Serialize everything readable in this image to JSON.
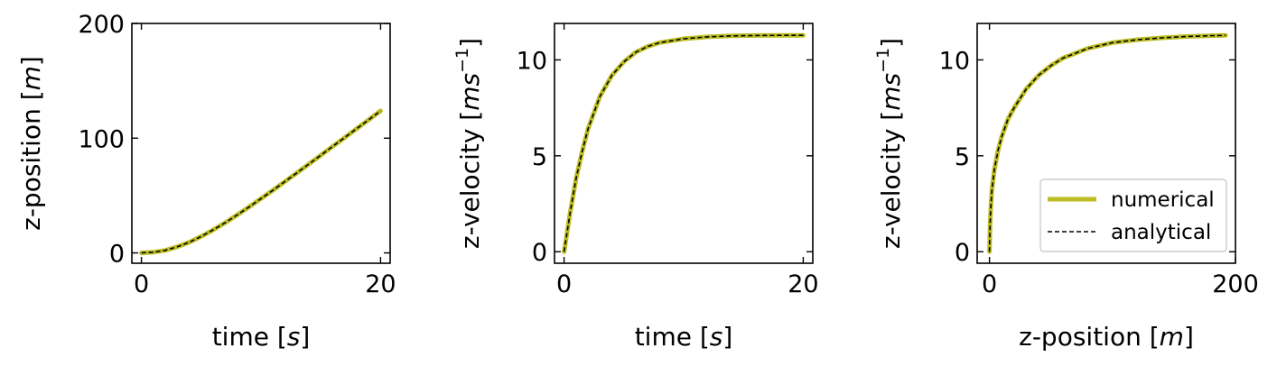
{
  "colors": {
    "numerical": "#bcbd22",
    "analytical": "#000000"
  },
  "chart_data": [
    {
      "type": "line",
      "xlabel": "time [s]",
      "xlabel_parts": [
        "time [",
        "s",
        "]"
      ],
      "ylabel": "z-position [m]",
      "ylabel_parts": [
        "z-position [",
        "m",
        "]"
      ],
      "xlim": [
        -0.8,
        20.8
      ],
      "ylim": [
        -9,
        200
      ],
      "xticks": [
        0,
        20
      ],
      "yticks": [
        0,
        100,
        200
      ],
      "legend": null,
      "series": [
        {
          "name": "numerical",
          "x": [
            0,
            1,
            2,
            3,
            4,
            5,
            6,
            7,
            8,
            9,
            10,
            11,
            12,
            13,
            14,
            15,
            16,
            17,
            18,
            19,
            20
          ],
          "y": [
            0,
            0.6,
            2.2,
            5.3,
            9.3,
            14.3,
            20.1,
            26.3,
            33.0,
            40.0,
            47.3,
            54.6,
            62.2,
            69.7,
            77.4,
            85.1,
            92.8,
            100.5,
            108.3,
            116.0,
            123.8
          ]
        },
        {
          "name": "analytical",
          "x": [
            0,
            1,
            2,
            3,
            4,
            5,
            6,
            7,
            8,
            9,
            10,
            11,
            12,
            13,
            14,
            15,
            16,
            17,
            18,
            19,
            20
          ],
          "y": [
            0,
            0.6,
            2.2,
            5.3,
            9.3,
            14.3,
            20.1,
            26.3,
            33.0,
            40.0,
            47.3,
            54.6,
            62.2,
            69.7,
            77.4,
            85.1,
            92.8,
            100.5,
            108.3,
            116.0,
            123.8
          ]
        }
      ]
    },
    {
      "type": "line",
      "xlabel": "time [s]",
      "xlabel_parts": [
        "time [",
        "s",
        "]"
      ],
      "ylabel": "z-velocity [ms⁻¹]",
      "ylabel_parts": [
        "z-velocity [",
        "ms",
        "−1",
        "]"
      ],
      "xlim": [
        -0.8,
        20.8
      ],
      "ylim": [
        -0.6,
        11.9
      ],
      "xticks": [
        0,
        20
      ],
      "yticks": [
        0,
        5,
        10
      ],
      "legend": null,
      "series": [
        {
          "name": "numerical",
          "x": [
            0,
            0.5,
            1,
            1.5,
            2,
            3,
            4,
            5,
            6,
            7,
            8,
            9,
            10,
            12,
            14,
            16,
            18,
            20
          ],
          "y": [
            0,
            2.0,
            3.8,
            5.2,
            6.4,
            8.1,
            9.2,
            9.9,
            10.4,
            10.7,
            10.9,
            11.0,
            11.1,
            11.2,
            11.25,
            11.27,
            11.28,
            11.28
          ]
        },
        {
          "name": "analytical",
          "x": [
            0,
            0.5,
            1,
            1.5,
            2,
            3,
            4,
            5,
            6,
            7,
            8,
            9,
            10,
            12,
            14,
            16,
            18,
            20
          ],
          "y": [
            0,
            2.0,
            3.8,
            5.2,
            6.4,
            8.1,
            9.2,
            9.9,
            10.4,
            10.7,
            10.9,
            11.0,
            11.1,
            11.2,
            11.25,
            11.27,
            11.28,
            11.28
          ]
        }
      ]
    },
    {
      "type": "line",
      "xlabel": "z-position [m]",
      "xlabel_parts": [
        "z-position [",
        "m",
        "]"
      ],
      "ylabel": "z-velocity [ms⁻¹]",
      "ylabel_parts": [
        "z-velocity [",
        "ms",
        "−1",
        "]"
      ],
      "xlim": [
        -10,
        200
      ],
      "ylim": [
        -0.6,
        11.9
      ],
      "xticks": [
        0,
        200
      ],
      "yticks": [
        0,
        5,
        10
      ],
      "legend": {
        "position": "lower-right",
        "entries": [
          "numerical",
          "analytical"
        ]
      },
      "series": [
        {
          "name": "numerical",
          "x": [
            0,
            0.5,
            1,
            2,
            4,
            7,
            10,
            15,
            20,
            30,
            40,
            50,
            60,
            80,
            100,
            120,
            140,
            160,
            180,
            192
          ],
          "y": [
            0,
            1.4,
            2.2,
            3.2,
            4.3,
            5.3,
            6.0,
            6.9,
            7.5,
            8.5,
            9.2,
            9.7,
            10.1,
            10.6,
            10.9,
            11.05,
            11.15,
            11.22,
            11.26,
            11.28
          ]
        },
        {
          "name": "analytical",
          "x": [
            0,
            0.5,
            1,
            2,
            4,
            7,
            10,
            15,
            20,
            30,
            40,
            50,
            60,
            80,
            100,
            120,
            140,
            160,
            180,
            192
          ],
          "y": [
            0,
            1.4,
            2.2,
            3.2,
            4.3,
            5.3,
            6.0,
            6.9,
            7.5,
            8.5,
            9.2,
            9.7,
            10.1,
            10.6,
            10.9,
            11.05,
            11.15,
            11.22,
            11.26,
            11.28
          ]
        }
      ]
    }
  ]
}
